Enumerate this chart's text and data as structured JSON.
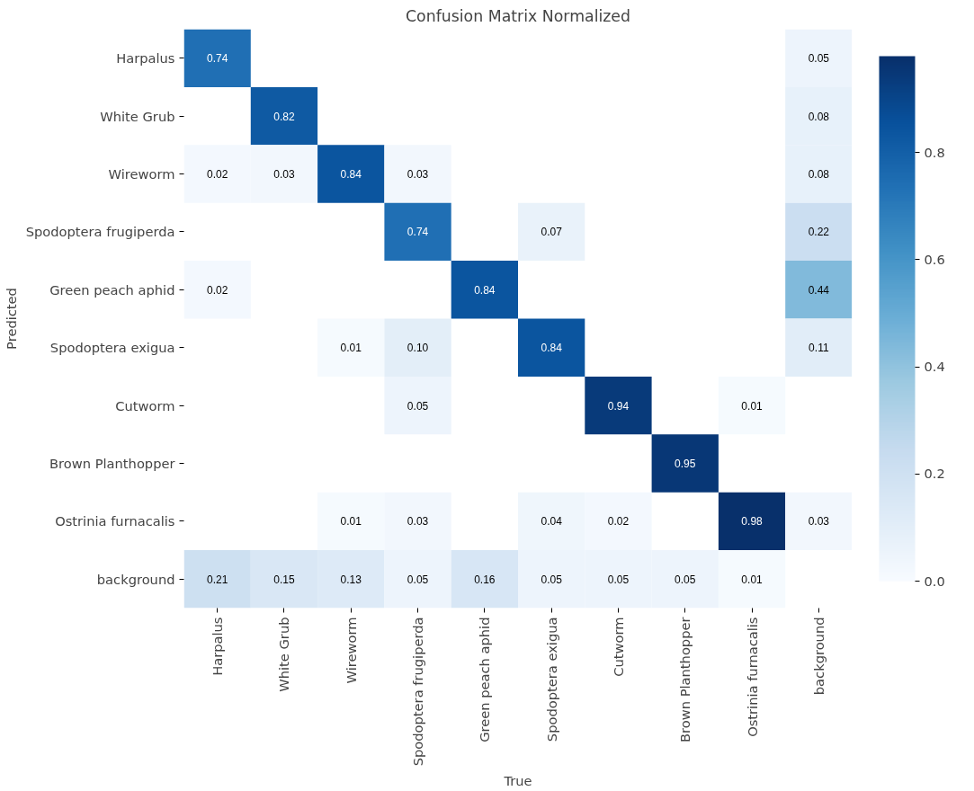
{
  "chart_data": {
    "type": "heatmap",
    "title": "Confusion Matrix Normalized",
    "xlabel": "True",
    "ylabel": "Predicted",
    "categories": [
      "Harpalus",
      "White Grub",
      "Wireworm",
      "Spodoptera frugiperda",
      "Green peach aphid",
      "Spodoptera exigua",
      "Cutworm",
      "Brown Planthopper",
      "Ostrinia furnacalis",
      "background"
    ],
    "y_categories": [
      "Harpalus",
      "White Grub",
      "Wireworm",
      "Spodoptera frugiperda",
      "Green peach aphid",
      "Spodoptera exigua",
      "Cutworm",
      "Brown Planthopper",
      "Ostrinia furnacalis",
      "background"
    ],
    "cells": [
      [
        0.74,
        null,
        null,
        null,
        null,
        null,
        null,
        null,
        null,
        0.05
      ],
      [
        null,
        0.82,
        null,
        null,
        null,
        null,
        null,
        null,
        null,
        0.08
      ],
      [
        0.02,
        0.03,
        0.84,
        0.03,
        null,
        null,
        null,
        null,
        null,
        0.08
      ],
      [
        null,
        null,
        null,
        0.74,
        null,
        0.07,
        null,
        null,
        null,
        0.22
      ],
      [
        0.02,
        null,
        null,
        null,
        0.84,
        null,
        null,
        null,
        null,
        0.44
      ],
      [
        null,
        null,
        0.01,
        0.1,
        null,
        0.84,
        null,
        null,
        null,
        0.11
      ],
      [
        null,
        null,
        null,
        0.05,
        null,
        null,
        0.94,
        null,
        0.01,
        null
      ],
      [
        null,
        null,
        null,
        null,
        null,
        null,
        null,
        0.95,
        null,
        null
      ],
      [
        null,
        null,
        0.01,
        0.03,
        null,
        0.04,
        0.02,
        null,
        0.98,
        0.03
      ],
      [
        0.21,
        0.15,
        0.13,
        0.05,
        0.16,
        0.05,
        0.05,
        0.05,
        0.01,
        null
      ]
    ],
    "cell_labels": [
      [
        "0.74",
        null,
        null,
        null,
        null,
        null,
        null,
        null,
        null,
        "0.05"
      ],
      [
        null,
        "0.82",
        null,
        null,
        null,
        null,
        null,
        null,
        null,
        "0.08"
      ],
      [
        "0.02",
        "0.03",
        "0.84",
        "0.03",
        null,
        null,
        null,
        null,
        null,
        "0.08"
      ],
      [
        null,
        null,
        null,
        "0.74",
        null,
        "0.07",
        null,
        null,
        null,
        "0.22"
      ],
      [
        "0.02",
        null,
        null,
        null,
        "0.84",
        null,
        null,
        null,
        null,
        "0.44"
      ],
      [
        null,
        null,
        "0.01",
        "0.10",
        null,
        "0.84",
        null,
        null,
        null,
        "0.11"
      ],
      [
        null,
        null,
        null,
        "0.05",
        null,
        null,
        "0.94",
        null,
        "0.01",
        null
      ],
      [
        null,
        null,
        null,
        null,
        null,
        null,
        null,
        "0.95",
        null,
        null
      ],
      [
        null,
        null,
        "0.01",
        "0.03",
        null,
        "0.04",
        "0.02",
        null,
        "0.98",
        "0.03"
      ],
      [
        "0.21",
        "0.15",
        "0.13",
        "0.05",
        "0.16",
        "0.05",
        "0.05",
        "0.05",
        "0.01",
        null
      ]
    ],
    "clim": [
      0,
      0.98
    ],
    "cticks": [
      {
        "value": 0,
        "label": "0.0"
      },
      {
        "value": 0.2,
        "label": "0.2"
      },
      {
        "value": 0.4,
        "label": "0.4"
      },
      {
        "value": 0.6,
        "label": "0.6"
      },
      {
        "value": 0.8,
        "label": "0.8"
      }
    ]
  }
}
